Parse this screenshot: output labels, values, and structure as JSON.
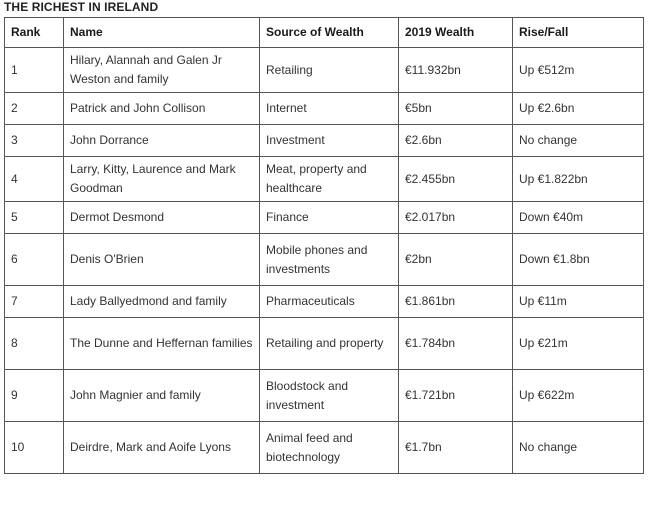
{
  "title": "THE RICHEST IN IRELAND",
  "table": {
    "headers": {
      "rank": "Rank",
      "name": "Name",
      "source": "Source of Wealth",
      "wealth": "2019 Wealth",
      "change": "Rise/Fall"
    },
    "rows": [
      {
        "rank": "1",
        "name": "Hilary, Alannah and Galen Jr Weston and family",
        "source": "Retailing",
        "wealth": "€11.932bn",
        "change": "Up €512m"
      },
      {
        "rank": "2",
        "name": "Patrick and John Collison",
        "source": "Internet",
        "wealth": "€5bn",
        "change": "Up €2.6bn"
      },
      {
        "rank": "3",
        "name": "John Dorrance",
        "source": "Investment",
        "wealth": "€2.6bn",
        "change": "No change"
      },
      {
        "rank": "4",
        "name": "Larry, Kitty, Laurence and Mark Goodman",
        "source": "Meat, property and healthcare",
        "wealth": "€2.455bn",
        "change": "Up €1.822bn"
      },
      {
        "rank": "5",
        "name": "Dermot Desmond",
        "source": "Finance",
        "wealth": "€2.017bn",
        "change": "Down €40m"
      },
      {
        "rank": "6",
        "name": "Denis O'Brien",
        "source": "Mobile phones and investments",
        "wealth": "€2bn",
        "change": "Down €1.8bn"
      },
      {
        "rank": "7",
        "name": "Lady Ballyedmond and family",
        "source": "Pharmaceuticals",
        "wealth": "€1.861bn",
        "change": "Up €11m"
      },
      {
        "rank": "8",
        "name": "The Dunne and Heffernan families",
        "source": "Retailing and property",
        "wealth": "€1.784bn",
        "change": "Up €21m"
      },
      {
        "rank": "9",
        "name": "John Magnier and family",
        "source": "Bloodstock and investment",
        "wealth": "€1.721bn",
        "change": "Up €622m"
      },
      {
        "rank": "10",
        "name": "Deirdre, Mark and Aoife Lyons",
        "source": "Animal feed and biotechnology",
        "wealth": "€1.7bn",
        "change": "No change"
      }
    ]
  }
}
